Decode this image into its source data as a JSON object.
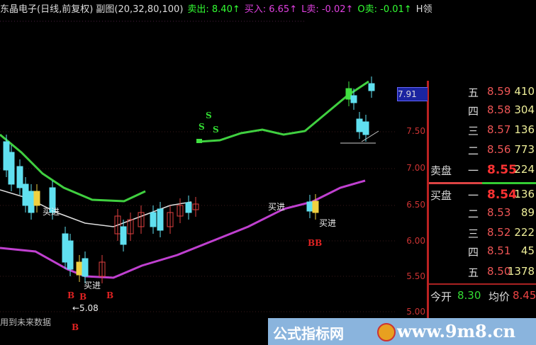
{
  "header": {
    "title": "东晶电子(日线,前复权) 副图(20,32,80,100)",
    "sell": "卖出: 8.40↑",
    "buy": "买入: 6.65↑",
    "lsell": "L卖: -0.02↑",
    "osell": "O卖: -0.01↑",
    "h": "H领"
  },
  "axis": {
    "current": "7.91",
    "ticks": [
      "7.50",
      "7.00",
      "6.50",
      "6.00",
      "5.50",
      "5.00"
    ]
  },
  "annotations": {
    "buy1": "买进",
    "buy2": "买进",
    "buy3": "买进",
    "buy4": "买进",
    "low": "←5.08",
    "future": "用到未来数据",
    "b": "B",
    "bb": "BB",
    "s": "S"
  },
  "order_book": {
    "asks": [
      {
        "level": "五",
        "price": "8.59",
        "vol": "410"
      },
      {
        "level": "四",
        "price": "8.58",
        "vol": "304"
      },
      {
        "level": "三",
        "price": "8.57",
        "vol": "136"
      },
      {
        "level": "二",
        "price": "8.56",
        "vol": "773"
      },
      {
        "level": "一",
        "label": "卖盘",
        "price": "8.55",
        "vol": "224"
      }
    ],
    "bids": [
      {
        "level": "一",
        "label": "买盘",
        "price": "8.54",
        "vol": "136"
      },
      {
        "level": "二",
        "price": "8.53",
        "vol": "89"
      },
      {
        "level": "三",
        "price": "8.52",
        "vol": "222"
      },
      {
        "level": "四",
        "price": "8.51",
        "vol": "45"
      },
      {
        "level": "五",
        "price": "8.50",
        "vol": "1378"
      }
    ],
    "open_label": "今开",
    "open": "8.30",
    "avg_label": "均价",
    "avg": "8.45"
  },
  "watermark": {
    "site_name": "公式指标网",
    "url": "www.9m8.cn"
  },
  "colors": {
    "up": "#e04040",
    "down": "#60e0f0",
    "upper_band": "#40d040",
    "lower_band": "#c040d0",
    "mid": "#e0e0e0"
  }
}
